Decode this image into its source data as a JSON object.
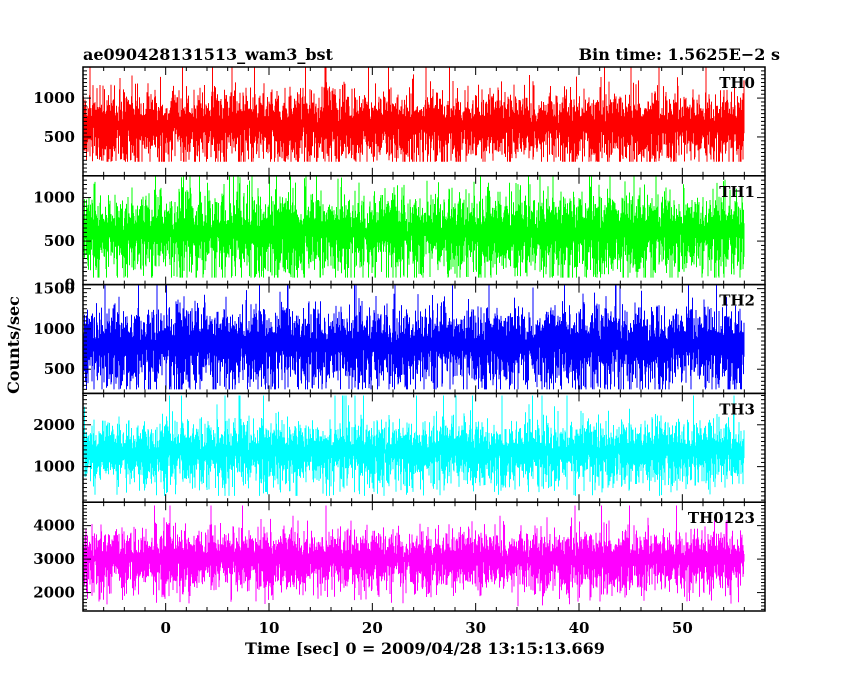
{
  "header": {
    "title": "ae090428131513_wam3_bst",
    "bin_time": "Bin time: 1.5625E−2 s"
  },
  "chart_data": {
    "type": "line",
    "title": "ae090428131513_wam3_bst",
    "xlabel": "Time [sec] 0 = 2009/04/28 13:15:13.669",
    "ylabel": "Counts/sec",
    "xlim": [
      -8,
      58
    ],
    "x_ticks": [
      0,
      10,
      20,
      30,
      40,
      50
    ],
    "x_data_range": [
      -8,
      56
    ],
    "grid": false,
    "panels": [
      {
        "name": "TH0",
        "color": "#ff0000",
        "ylim": [
          0,
          1400
        ],
        "y_ticks": [
          500,
          1000
        ],
        "mean": 650,
        "spread": 300,
        "min": 180,
        "max": 1400
      },
      {
        "name": "TH1",
        "color": "#00ff00",
        "ylim": [
          0,
          1250
        ],
        "y_ticks": [
          0,
          500,
          1000
        ],
        "mean": 600,
        "spread": 300,
        "min": 80,
        "max": 1250
      },
      {
        "name": "TH2",
        "color": "#0000ff",
        "ylim": [
          200,
          1550
        ],
        "y_ticks": [
          500,
          1000,
          1500
        ],
        "mean": 800,
        "spread": 320,
        "min": 250,
        "max": 1550
      },
      {
        "name": "TH3",
        "color": "#00ffff",
        "ylim": [
          150,
          2750
        ],
        "y_ticks": [
          1000,
          2000
        ],
        "mean": 1350,
        "spread": 500,
        "min": 300,
        "max": 2700
      },
      {
        "name": "TH0123",
        "color": "#ff00ff",
        "ylim": [
          1450,
          4700
        ],
        "y_ticks": [
          2000,
          3000,
          4000
        ],
        "mean": 3000,
        "spread": 600,
        "min": 1550,
        "max": 4600
      }
    ]
  }
}
